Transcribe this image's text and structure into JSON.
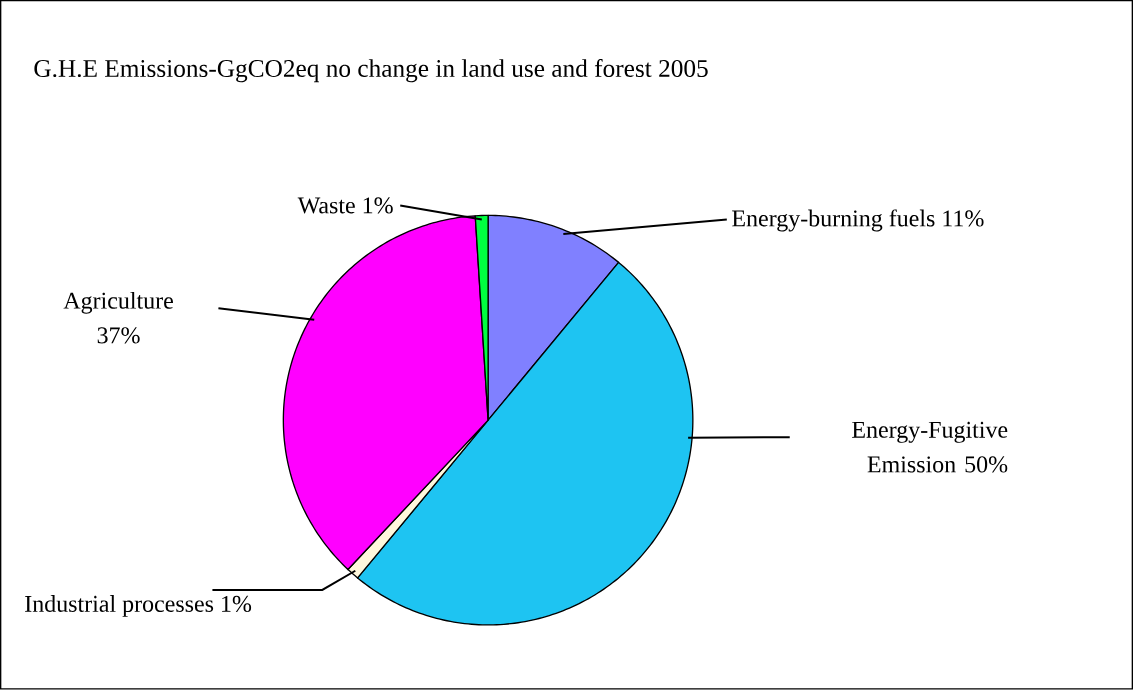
{
  "chart_data": {
    "type": "pie",
    "title": "G.H.E Emissions-GgCO2eq no change in land use and forest 2005",
    "categories": [
      "Energy-burning fuels",
      "Energy-Fugitive Emission",
      "Industrial processes",
      "Agriculture",
      "Waste"
    ],
    "values": [
      11,
      50,
      1,
      37,
      1
    ],
    "value_labels": [
      "11%",
      "50%",
      "1%",
      "37%",
      "1%"
    ],
    "colors": [
      "#8080ff",
      "#1ec4f2",
      "#fff8dc",
      "#ff00ff",
      "#00ff40"
    ]
  }
}
